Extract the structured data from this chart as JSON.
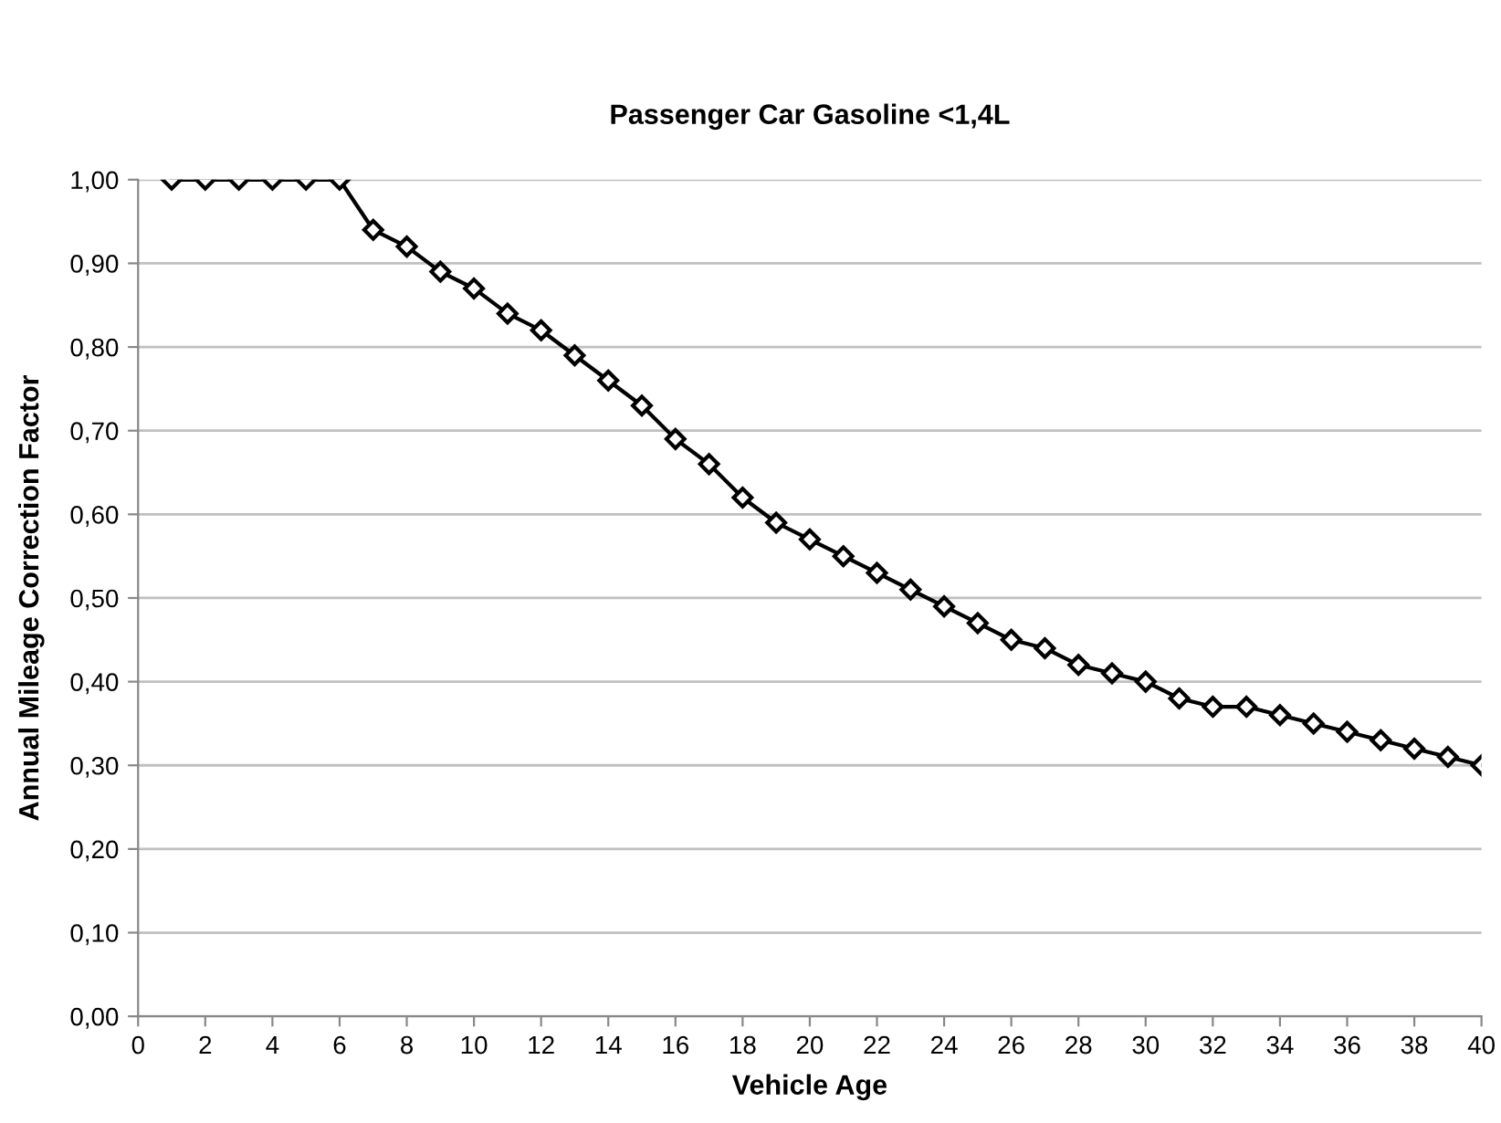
{
  "chart_data": {
    "type": "line",
    "title": "Passenger Car Gasoline <1,4L",
    "xlabel": "Vehicle Age",
    "ylabel": "Annual Mileage Correction Factor",
    "x": [
      1,
      2,
      3,
      4,
      5,
      6,
      7,
      8,
      9,
      10,
      11,
      12,
      13,
      14,
      15,
      16,
      17,
      18,
      19,
      20,
      21,
      22,
      23,
      24,
      25,
      26,
      27,
      28,
      29,
      30,
      31,
      32,
      33,
      34,
      35,
      36,
      37,
      38,
      39,
      40
    ],
    "series": [
      {
        "color": "#000000",
        "values": [
          1.0,
          1.0,
          1.0,
          1.0,
          1.0,
          1.0,
          0.94,
          0.92,
          0.89,
          0.87,
          0.84,
          0.82,
          0.79,
          0.76,
          0.73,
          0.69,
          0.66,
          0.62,
          0.59,
          0.57,
          0.55,
          0.53,
          0.51,
          0.49,
          0.47,
          0.45,
          0.44,
          0.42,
          0.41,
          0.4,
          0.38,
          0.37,
          0.37,
          0.36,
          0.35,
          0.34,
          0.33,
          0.32,
          0.31,
          0.3
        ]
      }
    ],
    "xlim": [
      0,
      40
    ],
    "xticks": [
      0,
      2,
      4,
      6,
      8,
      10,
      12,
      14,
      16,
      18,
      20,
      22,
      24,
      26,
      28,
      30,
      32,
      34,
      36,
      38,
      40
    ],
    "ylim": [
      0,
      1
    ],
    "yticks": [
      {
        "value": 0,
        "label": "0,00"
      },
      {
        "value": 0.1,
        "label": "0,10"
      },
      {
        "value": 0.2,
        "label": "0,20"
      },
      {
        "value": 0.3,
        "label": "0,30"
      },
      {
        "value": 0.4,
        "label": "0,40"
      },
      {
        "value": 0.5,
        "label": "0,50"
      },
      {
        "value": 0.6,
        "label": "0,60"
      },
      {
        "value": 0.7,
        "label": "0,70"
      },
      {
        "value": 0.8,
        "label": "0,80"
      },
      {
        "value": 0.9,
        "label": "0,90"
      },
      {
        "value": 1.0,
        "label": "1,00"
      }
    ],
    "grid": "y",
    "marker": "diamond",
    "line_style": "solid"
  }
}
